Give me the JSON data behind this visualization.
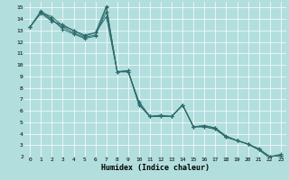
{
  "xlabel": "Humidex (Indice chaleur)",
  "ylabel": "",
  "xlim": [
    -0.5,
    23.5
  ],
  "ylim": [
    2,
    15.5
  ],
  "xticks": [
    0,
    1,
    2,
    3,
    4,
    5,
    6,
    7,
    8,
    9,
    10,
    11,
    12,
    13,
    14,
    15,
    16,
    17,
    18,
    19,
    20,
    21,
    22,
    23
  ],
  "yticks": [
    2,
    3,
    4,
    5,
    6,
    7,
    8,
    9,
    10,
    11,
    12,
    13,
    14,
    15
  ],
  "background_color": "#b2dede",
  "grid_color": "#ffffff",
  "line_color": "#2e6b6b",
  "lines": [
    [
      13.3,
      14.7,
      14.0,
      13.1,
      12.7,
      12.3,
      12.5,
      15.0,
      9.4,
      9.4,
      6.8,
      5.5,
      5.5,
      5.5,
      6.5,
      4.6,
      4.6,
      4.4,
      3.7,
      3.4,
      3.1,
      2.6,
      1.9,
      2.1
    ],
    [
      13.3,
      14.5,
      13.8,
      13.5,
      13.0,
      12.5,
      12.8,
      14.2,
      9.4,
      9.5,
      6.5,
      5.5,
      5.6,
      5.5,
      6.5,
      4.6,
      4.7,
      4.5,
      3.8,
      3.4,
      3.1,
      2.7,
      2.0,
      2.2
    ],
    [
      13.3,
      14.6,
      13.9,
      13.3,
      12.8,
      12.4,
      12.6,
      14.6,
      9.4,
      9.5,
      6.6,
      5.5,
      5.5,
      5.5,
      6.5,
      4.6,
      4.7,
      4.5,
      3.7,
      3.4,
      3.1,
      2.6,
      2.0,
      2.1
    ],
    [
      13.3,
      14.6,
      14.2,
      13.4,
      13.0,
      12.6,
      12.8,
      15.1,
      9.4,
      9.4,
      6.6,
      5.5,
      5.6,
      5.5,
      6.5,
      4.6,
      4.6,
      4.4,
      3.7,
      3.4,
      3.1,
      2.6,
      1.9,
      2.1
    ]
  ],
  "figsize": [
    3.2,
    2.0
  ],
  "dpi": 100
}
